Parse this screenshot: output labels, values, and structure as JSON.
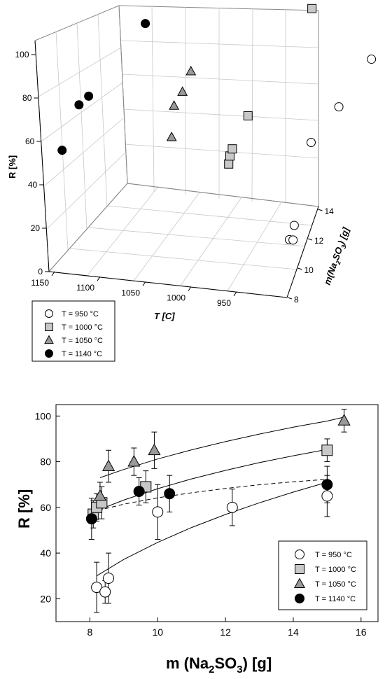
{
  "chart_data": [
    {
      "type": "scatter",
      "subtype": "3d-scatter",
      "zlabel": "R [%]",
      "xlabel": "T [C]",
      "ylabel": "m(Na2SO3) [g]",
      "ylabel_parts": {
        "pre": "m(Na",
        "sub1": "2",
        "mid": "SO",
        "sub2": "3",
        "post": ") [g]"
      },
      "z_ticks": [
        "0",
        "20",
        "40",
        "60",
        "80",
        "100"
      ],
      "x_ticks": [
        "1150",
        "1100",
        "1050",
        "1000",
        "950"
      ],
      "y_ticks": [
        "8",
        "10",
        "12",
        "14"
      ],
      "legend": {
        "placement": "bottom-left",
        "entries": [
          {
            "label": "T = 950 °C",
            "marker": "circle",
            "color": "#ffffff"
          },
          {
            "label": "T = 1000 °C",
            "marker": "square",
            "color": "#c8c8c8"
          },
          {
            "label": "T = 1050 °C",
            "marker": "triangle",
            "color": "#999999"
          },
          {
            "label": "T = 1140 °C",
            "marker": "circle",
            "color": "#000000"
          }
        ]
      },
      "series": [
        {
          "marker": "circle",
          "color": "#ffffff",
          "points": [
            {
              "T": 950,
              "m": 8.2,
              "R": 25
            },
            {
              "T": 950,
              "m": 8.5,
              "R": 23
            },
            {
              "T": 950,
              "m": 8.6,
              "R": 29
            },
            {
              "T": 950,
              "m": 10,
              "R": 58
            },
            {
              "T": 950,
              "m": 12.3,
              "R": 60
            },
            {
              "T": 950,
              "m": 15,
              "R": 65
            }
          ]
        },
        {
          "marker": "square",
          "color": "#c8c8c8",
          "points": [
            {
              "T": 1000,
              "m": 8.1,
              "R": 57
            },
            {
              "T": 1000,
              "m": 8.2,
              "R": 60
            },
            {
              "T": 1000,
              "m": 8.4,
              "R": 62
            },
            {
              "T": 1000,
              "m": 9.7,
              "R": 69
            },
            {
              "T": 1000,
              "m": 15,
              "R": 85
            }
          ]
        },
        {
          "marker": "triangle",
          "color": "#999999",
          "points": [
            {
              "T": 1050,
              "m": 8.3,
              "R": 65
            },
            {
              "T": 1050,
              "m": 8.5,
              "R": 78
            },
            {
              "T": 1050,
              "m": 9.2,
              "R": 80
            },
            {
              "T": 1050,
              "m": 9.9,
              "R": 85
            },
            {
              "T": 1050,
              "m": 15.5,
              "R": 98
            }
          ]
        },
        {
          "marker": "circle",
          "color": "#000000",
          "points": [
            {
              "T": 1140,
              "m": 8.1,
              "R": 55
            },
            {
              "T": 1140,
              "m": 9.5,
              "R": 67
            },
            {
              "T": 1140,
              "m": 10.3,
              "R": 66
            },
            {
              "T": 1140,
              "m": 15,
              "R": 70
            }
          ]
        }
      ]
    },
    {
      "type": "scatter",
      "xlabel_parts": {
        "pre": "m (Na",
        "sub1": "2",
        "mid": "SO",
        "sub2": "3",
        "post": ") [g]"
      },
      "ylabel": "R [%]",
      "xlim": [
        7,
        16.5
      ],
      "ylim": [
        10,
        105
      ],
      "x_ticks": [
        8,
        10,
        12,
        14,
        16
      ],
      "y_ticks": [
        20,
        40,
        60,
        80,
        100
      ],
      "legend": {
        "placement": "bottom-right",
        "entries": [
          {
            "label": "T = 950 °C",
            "marker": "circle",
            "color": "#ffffff"
          },
          {
            "label": "T = 1000 °C",
            "marker": "square",
            "color": "#c8c8c8"
          },
          {
            "label": "T = 1050 °C",
            "marker": "triangle",
            "color": "#999999"
          },
          {
            "label": "T = 1140 °C",
            "marker": "circle",
            "color": "#000000"
          }
        ]
      },
      "series": [
        {
          "marker": "circle",
          "color": "#ffffff",
          "points": [
            {
              "x": 8.2,
              "y": 25,
              "err": 11
            },
            {
              "x": 8.45,
              "y": 23,
              "err": 5
            },
            {
              "x": 8.55,
              "y": 29,
              "err": 11
            },
            {
              "x": 10,
              "y": 58,
              "err": 12
            },
            {
              "x": 12.2,
              "y": 60,
              "err": 8
            },
            {
              "x": 15,
              "y": 65,
              "err": 9
            }
          ],
          "fit": {
            "style": "solid",
            "points": [
              [
                8.2,
                30
              ],
              [
                9,
                37.2
              ],
              [
                10,
                44.7
              ],
              [
                11,
                51.2
              ],
              [
                12,
                56.9
              ],
              [
                13,
                62
              ],
              [
                14,
                66.7
              ],
              [
                15,
                71
              ]
            ]
          }
        },
        {
          "marker": "square",
          "color": "#c8c8c8",
          "points": [
            {
              "x": 8.1,
              "y": 57,
              "err": 6
            },
            {
              "x": 8.2,
              "y": 60,
              "err": 6
            },
            {
              "x": 8.35,
              "y": 62,
              "err": 7
            },
            {
              "x": 9.65,
              "y": 69,
              "err": 7
            },
            {
              "x": 15,
              "y": 85,
              "err": 5
            }
          ],
          "fit": {
            "style": "solid",
            "points": [
              [
                8.1,
                58
              ],
              [
                9,
                63.2
              ],
              [
                10,
                68.2
              ],
              [
                11,
                72.5
              ],
              [
                12,
                76.2
              ],
              [
                13,
                79.6
              ],
              [
                14,
                82.6
              ],
              [
                15,
                85.4
              ]
            ]
          }
        },
        {
          "marker": "triangle",
          "color": "#999999",
          "points": [
            {
              "x": 8.3,
              "y": 65,
              "err": 6
            },
            {
              "x": 8.55,
              "y": 78,
              "err": 7
            },
            {
              "x": 9.3,
              "y": 80,
              "err": 6
            },
            {
              "x": 9.9,
              "y": 85,
              "err": 8
            },
            {
              "x": 15.5,
              "y": 98,
              "err": 5
            }
          ],
          "fit": {
            "style": "solid",
            "points": [
              [
                8.3,
                73
              ],
              [
                9,
                76.6
              ],
              [
                10,
                81.2
              ],
              [
                11,
                85.2
              ],
              [
                12,
                88.8
              ],
              [
                13,
                92.1
              ],
              [
                14,
                95.1
              ],
              [
                15,
                97.8
              ],
              [
                15.5,
                99.5
              ]
            ]
          }
        },
        {
          "marker": "circle",
          "color": "#000000",
          "points": [
            {
              "x": 8.05,
              "y": 55,
              "err": 9
            },
            {
              "x": 9.45,
              "y": 67,
              "err": 6
            },
            {
              "x": 10.35,
              "y": 66,
              "err": 8
            },
            {
              "x": 15,
              "y": 70,
              "err": 8
            }
          ],
          "fit": {
            "style": "dashed",
            "points": [
              [
                8.05,
                58
              ],
              [
                9,
                61.4
              ],
              [
                10,
                64.2
              ],
              [
                11,
                66.4
              ],
              [
                12,
                68.3
              ],
              [
                13,
                69.9
              ],
              [
                14,
                71.2
              ],
              [
                15,
                72.3
              ]
            ]
          }
        }
      ]
    }
  ]
}
